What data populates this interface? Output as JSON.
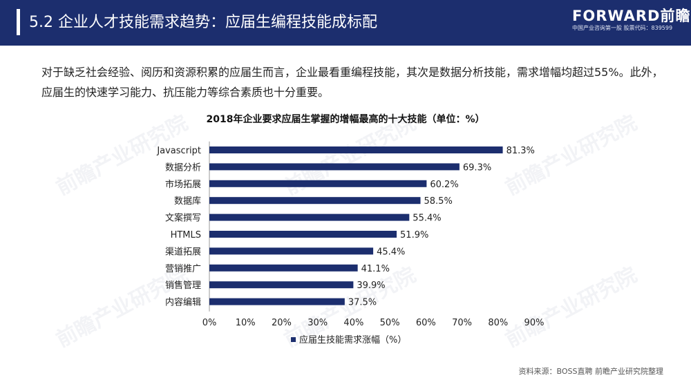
{
  "header": {
    "title": "5.2 企业人才技能需求趋势：应届生编程技能成标配",
    "logo": "FORWARD前瞻",
    "logo_sub": "中国产业咨询第一股 股票代码：839599"
  },
  "intro": "对于缺乏社会经验、阅历和资源积累的应届生而言，企业最看重编程技能，其次是数据分析技能，需求增幅均超过55%。此外，应届生的快速学习能力、抗压能力等综合素质也十分重要。",
  "watermark": "前瞻产业研究院",
  "source": "资料来源：BOSS直聘 前瞻产业研究院整理",
  "colors": {
    "header_bg": "#1c2e6e",
    "bar": "#1c2e6e"
  },
  "chart_data": {
    "type": "bar",
    "orientation": "horizontal",
    "title": "2018年企业要求应届生掌握的增幅最高的十大技能（单位：%）",
    "categories": [
      "Javascript",
      "数据分析",
      "市场拓展",
      "数据库",
      "文案撰写",
      "HTMLS",
      "渠道拓展",
      "营销推广",
      "销售管理",
      "内容编辑"
    ],
    "series": [
      {
        "name": "应届生技能需求涨幅（%）",
        "values": [
          81.3,
          69.3,
          60.2,
          58.5,
          55.4,
          51.9,
          45.4,
          41.1,
          39.9,
          37.5
        ]
      }
    ],
    "value_labels": [
      "81.3%",
      "69.3%",
      "60.2%",
      "58.5%",
      "55.4%",
      "51.9%",
      "45.4%",
      "41.1%",
      "39.9%",
      "37.5%"
    ],
    "x_ticks": [
      "0%",
      "10%",
      "20%",
      "30%",
      "40%",
      "50%",
      "60%",
      "70%",
      "80%",
      "90%"
    ],
    "xlim": [
      0,
      90
    ],
    "grid": false,
    "legend": "bottom"
  }
}
